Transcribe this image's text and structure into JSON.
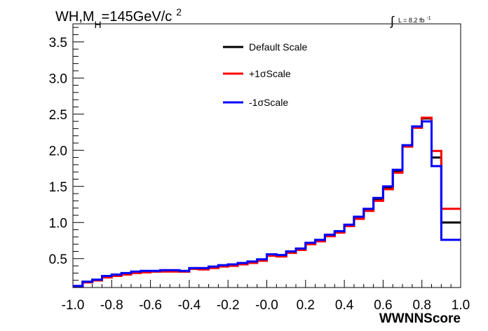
{
  "chart_data": {
    "type": "line",
    "style": "histogram-step",
    "title": {
      "main": "WH,M",
      "subscript": "H",
      "rest": "=145GeV/c",
      "superscript": "2"
    },
    "luminosity": {
      "integral": "∫",
      "text": "L = 8.2 fb",
      "superscript": "-1"
    },
    "xlabel": "WWNNScore",
    "ylabel": "",
    "xlim": [
      -1.0,
      1.0
    ],
    "ylim": [
      0.1,
      3.75
    ],
    "x_ticks": [
      "-1.0",
      "-0.8",
      "-0.6",
      "-0.4",
      "-0.2",
      "-0.0",
      "0.2",
      "0.4",
      "0.6",
      "0.8",
      "1.0"
    ],
    "y_ticks": [
      "0.5",
      "1.0",
      "1.5",
      "2.0",
      "2.5",
      "3.0",
      "3.5"
    ],
    "legend_position": "top-center",
    "grid": false,
    "bin_edges": [
      -1.0,
      -0.95,
      -0.9,
      -0.85,
      -0.8,
      -0.75,
      -0.7,
      -0.65,
      -0.6,
      -0.55,
      -0.5,
      -0.45,
      -0.4,
      -0.35,
      -0.3,
      -0.25,
      -0.2,
      -0.15,
      -0.1,
      -0.05,
      0.0,
      0.05,
      0.1,
      0.15,
      0.2,
      0.25,
      0.3,
      0.35,
      0.4,
      0.45,
      0.5,
      0.55,
      0.6,
      0.65,
      0.7,
      0.75,
      0.8,
      0.85,
      0.9,
      0.95,
      1.0
    ],
    "series": [
      {
        "name": "Default Scale",
        "color": "#000000",
        "values": [
          0.12,
          0.18,
          0.2,
          0.25,
          0.27,
          0.29,
          0.31,
          0.32,
          0.32,
          0.33,
          0.33,
          0.32,
          0.36,
          0.36,
          0.38,
          0.4,
          0.41,
          0.43,
          0.45,
          0.48,
          0.55,
          0.54,
          0.59,
          0.63,
          0.71,
          0.75,
          0.82,
          0.87,
          0.96,
          1.07,
          1.18,
          1.32,
          1.48,
          1.71,
          2.07,
          2.32,
          2.44,
          1.9,
          1.0,
          1.0
        ]
      },
      {
        "name": "+1σScale",
        "color": "#ff0000",
        "values": [
          0.12,
          0.17,
          0.2,
          0.24,
          0.26,
          0.28,
          0.3,
          0.31,
          0.32,
          0.32,
          0.32,
          0.32,
          0.36,
          0.35,
          0.37,
          0.39,
          0.4,
          0.42,
          0.44,
          0.47,
          0.54,
          0.53,
          0.58,
          0.62,
          0.7,
          0.74,
          0.81,
          0.86,
          0.95,
          1.05,
          1.16,
          1.3,
          1.46,
          1.69,
          2.05,
          2.31,
          2.45,
          1.99,
          1.19,
          1.19
        ]
      },
      {
        "name": "-1σScale",
        "color": "#0000ff",
        "values": [
          0.12,
          0.18,
          0.21,
          0.26,
          0.28,
          0.3,
          0.32,
          0.33,
          0.33,
          0.34,
          0.34,
          0.33,
          0.37,
          0.37,
          0.39,
          0.41,
          0.42,
          0.44,
          0.46,
          0.49,
          0.56,
          0.55,
          0.6,
          0.64,
          0.72,
          0.76,
          0.83,
          0.88,
          0.97,
          1.08,
          1.19,
          1.34,
          1.5,
          1.73,
          2.07,
          2.33,
          2.4,
          1.78,
          0.76,
          0.76
        ]
      }
    ]
  }
}
